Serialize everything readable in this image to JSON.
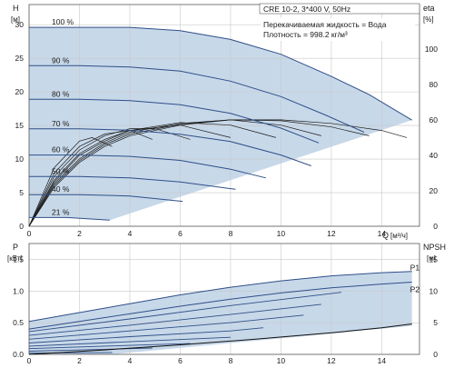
{
  "chart_data": [
    {
      "type": "line",
      "panel": "performance",
      "model_label": "CRE 10-2, 3*400 V, 50Hz",
      "fluid_label": "Перекачиваемая жидкость = Вода",
      "density_label": "Плотность = 998.2 кг/м³",
      "ylabel_left": "H",
      "ylabel_left_unit": "[м]",
      "ylabel_right": "eta",
      "ylabel_right_unit": "[%]",
      "xlabel": "Q",
      "xlabel_unit": "[м³/ч]",
      "xlim": [
        0,
        15.5
      ],
      "ylim": [
        0,
        33
      ],
      "ylim_right": [
        0,
        125
      ],
      "x_ticks": [
        0,
        2,
        4,
        6,
        8,
        10,
        12,
        14
      ],
      "y_ticks": [
        0,
        5,
        10,
        15,
        20,
        25,
        30
      ],
      "y_right_ticks": [
        0,
        20,
        40,
        60,
        80,
        100
      ],
      "grid": true,
      "colors": {
        "curve": "#2f4f88",
        "envelope": "#c7d8e9",
        "efficiency": "#1c1c1c",
        "grid": "#c8c8c8",
        "axis": "#5a5a5a"
      },
      "series": [
        {
          "name": "100 %",
          "x": [
            0,
            2,
            4,
            6,
            8,
            10,
            12,
            13.5,
            15.2
          ],
          "y": [
            29.6,
            29.6,
            29.6,
            29.1,
            27.8,
            25.6,
            22.3,
            19.6,
            15.8
          ]
        },
        {
          "name": "90 %",
          "x": [
            0,
            2,
            4,
            6,
            8,
            10,
            11.8,
            13.3
          ],
          "y": [
            23.9,
            23.9,
            23.7,
            23.1,
            21.6,
            19.3,
            16.5,
            14.0
          ]
        },
        {
          "name": "80 %",
          "x": [
            0,
            2,
            4,
            6,
            8,
            10,
            11.5
          ],
          "y": [
            18.9,
            18.9,
            18.7,
            18.1,
            16.8,
            14.6,
            12.4
          ]
        },
        {
          "name": "70 %",
          "x": [
            0,
            2,
            4,
            6,
            8,
            10,
            11.2
          ],
          "y": [
            14.5,
            14.5,
            14.3,
            13.7,
            12.6,
            10.6,
            9.0
          ]
        },
        {
          "name": "60 %",
          "x": [
            0,
            2,
            4,
            6,
            8,
            9.4
          ],
          "y": [
            10.6,
            10.6,
            10.4,
            9.8,
            8.5,
            7.2
          ]
        },
        {
          "name": "50 %",
          "x": [
            0,
            2,
            4,
            6,
            8.2
          ],
          "y": [
            7.4,
            7.4,
            7.2,
            6.6,
            5.5
          ]
        },
        {
          "name": "40 %",
          "x": [
            0,
            2,
            4,
            6.1
          ],
          "y": [
            4.7,
            4.7,
            4.5,
            3.7
          ]
        },
        {
          "name": "21 %",
          "x": [
            0,
            1.5,
            3.2
          ],
          "y": [
            1.3,
            1.3,
            0.9
          ]
        }
      ],
      "efficiency_series": [
        {
          "x": [
            0,
            1,
            2,
            3,
            4,
            6,
            8,
            10,
            12,
            14,
            15
          ],
          "y": [
            0,
            22,
            36,
            45,
            51,
            57,
            60,
            60,
            58,
            54,
            50
          ]
        },
        {
          "x": [
            0,
            1,
            2,
            3,
            4,
            6,
            8,
            10,
            12,
            13.5
          ],
          "y": [
            0,
            23,
            37,
            46,
            52,
            57.5,
            60,
            59.5,
            56,
            51
          ]
        },
        {
          "x": [
            0,
            1,
            2,
            3,
            4,
            6,
            8,
            10,
            11.6
          ],
          "y": [
            0,
            24,
            38,
            47,
            53,
            58,
            60,
            57,
            51
          ]
        },
        {
          "x": [
            0,
            1,
            2,
            3,
            4,
            6,
            8,
            9.8
          ],
          "y": [
            0,
            25,
            40,
            48,
            54,
            58.5,
            57,
            50
          ]
        },
        {
          "x": [
            0,
            1,
            2,
            3,
            4,
            6,
            8.0
          ],
          "y": [
            0,
            26,
            41,
            49,
            54,
            57,
            50
          ]
        },
        {
          "x": [
            0,
            1,
            2,
            3,
            4,
            5,
            6.4
          ],
          "y": [
            0,
            28,
            43,
            51,
            55,
            55,
            49
          ]
        },
        {
          "x": [
            0,
            1,
            2,
            3,
            4,
            4.9
          ],
          "y": [
            0,
            30,
            45,
            52,
            54,
            49
          ]
        },
        {
          "x": [
            0,
            1,
            2,
            2.5,
            3.3
          ],
          "y": [
            0,
            33,
            48,
            50,
            45
          ]
        }
      ]
    },
    {
      "type": "line",
      "panel": "power",
      "ylabel_left": "P",
      "ylabel_left_unit": "[кВт]",
      "ylabel_right": "NPSH",
      "ylabel_right_unit": "[м]",
      "xlim": [
        0,
        15.5
      ],
      "ylim": [
        0,
        1.75
      ],
      "ylim_right": [
        0,
        17.5
      ],
      "x_ticks": [
        0,
        2,
        4,
        6,
        8,
        10,
        12,
        14
      ],
      "y_ticks": [
        0.0,
        0.5,
        1.0,
        1.5
      ],
      "y_right_ticks": [
        0,
        5,
        10,
        15
      ],
      "grid": true,
      "series": [
        {
          "name": "P1",
          "x": [
            0,
            2,
            4,
            6,
            8,
            10,
            12,
            14,
            15.2
          ],
          "y": [
            0.52,
            0.66,
            0.8,
            0.94,
            1.06,
            1.16,
            1.24,
            1.29,
            1.31
          ]
        },
        {
          "name": "P2",
          "x": [
            0,
            2,
            4,
            6,
            8,
            10,
            12,
            14,
            15.2
          ],
          "y": [
            0.4,
            0.52,
            0.64,
            0.76,
            0.87,
            0.97,
            1.05,
            1.11,
            1.14
          ]
        }
      ],
      "inner_power_series": [
        {
          "x": [
            0,
            4,
            8,
            12.4
          ],
          "y": [
            0.36,
            0.56,
            0.77,
            0.98
          ]
        },
        {
          "x": [
            0,
            4,
            8,
            11.6
          ],
          "y": [
            0.3,
            0.46,
            0.63,
            0.79
          ]
        },
        {
          "x": [
            0,
            4,
            8,
            10.9
          ],
          "y": [
            0.24,
            0.37,
            0.5,
            0.62
          ]
        },
        {
          "x": [
            0,
            4,
            8,
            9.3
          ],
          "y": [
            0.18,
            0.28,
            0.37,
            0.42
          ]
        },
        {
          "x": [
            0,
            4,
            8.0
          ],
          "y": [
            0.13,
            0.2,
            0.27
          ]
        },
        {
          "x": [
            0,
            3,
            6.4
          ],
          "y": [
            0.09,
            0.13,
            0.17
          ]
        },
        {
          "x": [
            0,
            3,
            4.9
          ],
          "y": [
            0.05,
            0.08,
            0.1
          ]
        },
        {
          "x": [
            0,
            3.3
          ],
          "y": [
            0.02,
            0.03
          ]
        }
      ],
      "npsh_series": {
        "x": [
          0,
          3,
          6,
          9,
          12,
          14,
          15.2
        ],
        "y": [
          0.0,
          0.7,
          1.5,
          2.4,
          3.4,
          4.2,
          4.8
        ]
      }
    }
  ]
}
